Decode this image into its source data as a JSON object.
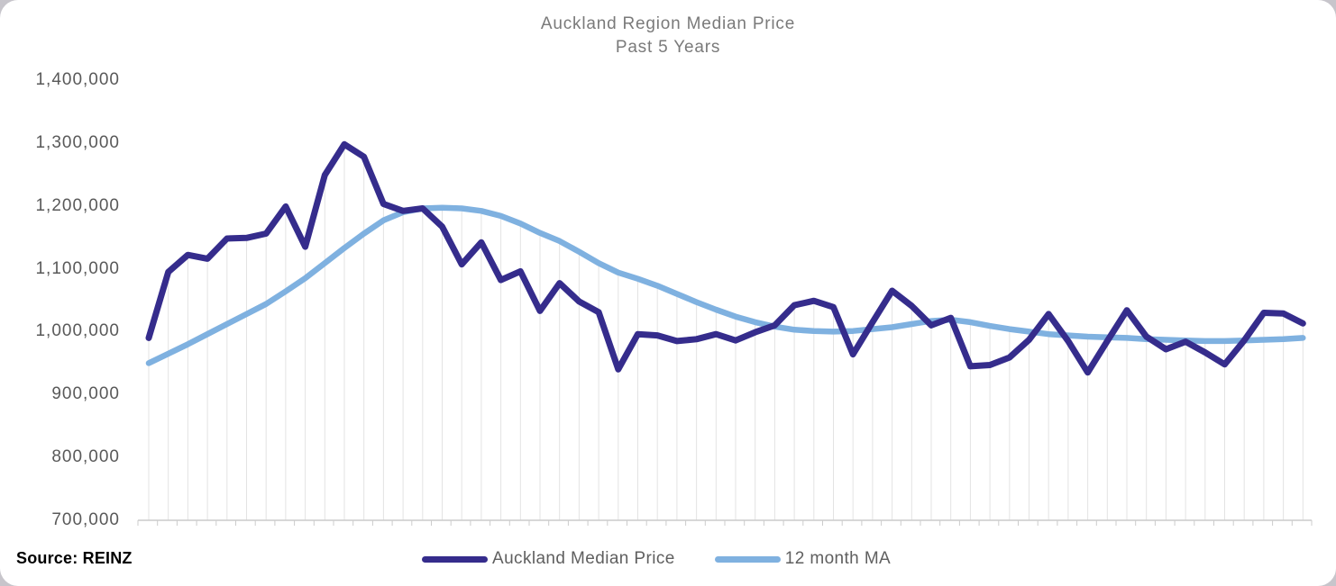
{
  "title": {
    "line1": "Auckland Region Median Price",
    "line2": "Past 5 Years"
  },
  "source_label": "Source: REINZ",
  "legend": [
    {
      "label": "Auckland Median Price",
      "color": "#352C8C"
    },
    {
      "label": "12 month MA",
      "color": "#7FB1E0"
    }
  ],
  "colors": {
    "median_line": "#352C8C",
    "ma_line": "#7FB1E0",
    "title_text": "#7A7A7A",
    "axis_text": "#595959",
    "drop_line": "#E3E3E3",
    "axis_line": "#CCCCCC",
    "card_background": "#FFFFFF",
    "page_background": "#C7C5CB"
  },
  "chart_data": {
    "type": "line",
    "title": "Auckland Region Median Price",
    "subtitle": "Past 5 Years",
    "legend_position": "bottom",
    "grid": "vertical drop lines from each monthly point to x-axis; no horizontal gridlines",
    "x_axis": {
      "label": "",
      "tick_labels": [],
      "note": "60 monthly points spanning 5 years; x tick marks shown without labels"
    },
    "y_axis": {
      "min": 700000,
      "max": 1400000,
      "tick_interval": 100000,
      "tick_labels": [
        "1,400,000",
        "1,300,000",
        "1,200,000",
        "1,100,000",
        "1,000,000",
        "900,000",
        "800,000",
        "700,000"
      ]
    },
    "series": [
      {
        "name": "Auckland Median Price",
        "color": "#352C8C",
        "values": [
          990000,
          1095000,
          1122000,
          1116000,
          1148000,
          1149000,
          1156000,
          1199000,
          1135000,
          1249000,
          1298000,
          1278000,
          1203000,
          1192000,
          1196000,
          1167000,
          1107000,
          1142000,
          1082000,
          1096000,
          1033000,
          1077000,
          1048000,
          1031000,
          940000,
          996000,
          994000,
          985000,
          988000,
          996000,
          986000,
          999000,
          1010000,
          1042000,
          1049000,
          1039000,
          964000,
          1015000,
          1065000,
          1041000,
          1010000,
          1022000,
          945000,
          947000,
          959000,
          987000,
          1028000,
          985000,
          935000,
          985000,
          1034000,
          992000,
          972000,
          984000,
          967000,
          948000,
          986000,
          1030000,
          1029000,
          1013000
        ]
      },
      {
        "name": "12 month MA",
        "color": "#7FB1E0",
        "values": [
          950000,
          965000,
          980000,
          996000,
          1012000,
          1028000,
          1044000,
          1064000,
          1085000,
          1109000,
          1133000,
          1156000,
          1177000,
          1190000,
          1196000,
          1197000,
          1196000,
          1192000,
          1184000,
          1172000,
          1157000,
          1144000,
          1127000,
          1109000,
          1094000,
          1084000,
          1073000,
          1060000,
          1047000,
          1035000,
          1024000,
          1015000,
          1008000,
          1003000,
          1001000,
          1000000,
          1001000,
          1004000,
          1007000,
          1012000,
          1017000,
          1019000,
          1015000,
          1009000,
          1004000,
          1000000,
          996000,
          994000,
          992000,
          991000,
          990000,
          988000,
          987000,
          986000,
          985000,
          985000,
          986000,
          987000,
          988000,
          990000
        ]
      }
    ]
  }
}
